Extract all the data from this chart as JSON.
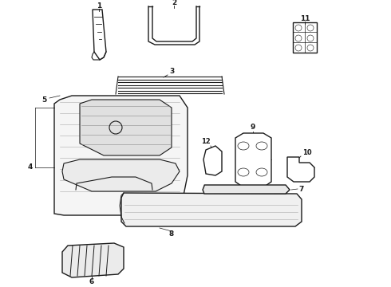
{
  "bg_color": "#ffffff",
  "line_color": "#1a1a1a",
  "lw": 1.0,
  "fig_w": 4.9,
  "fig_h": 3.6,
  "dpi": 100
}
